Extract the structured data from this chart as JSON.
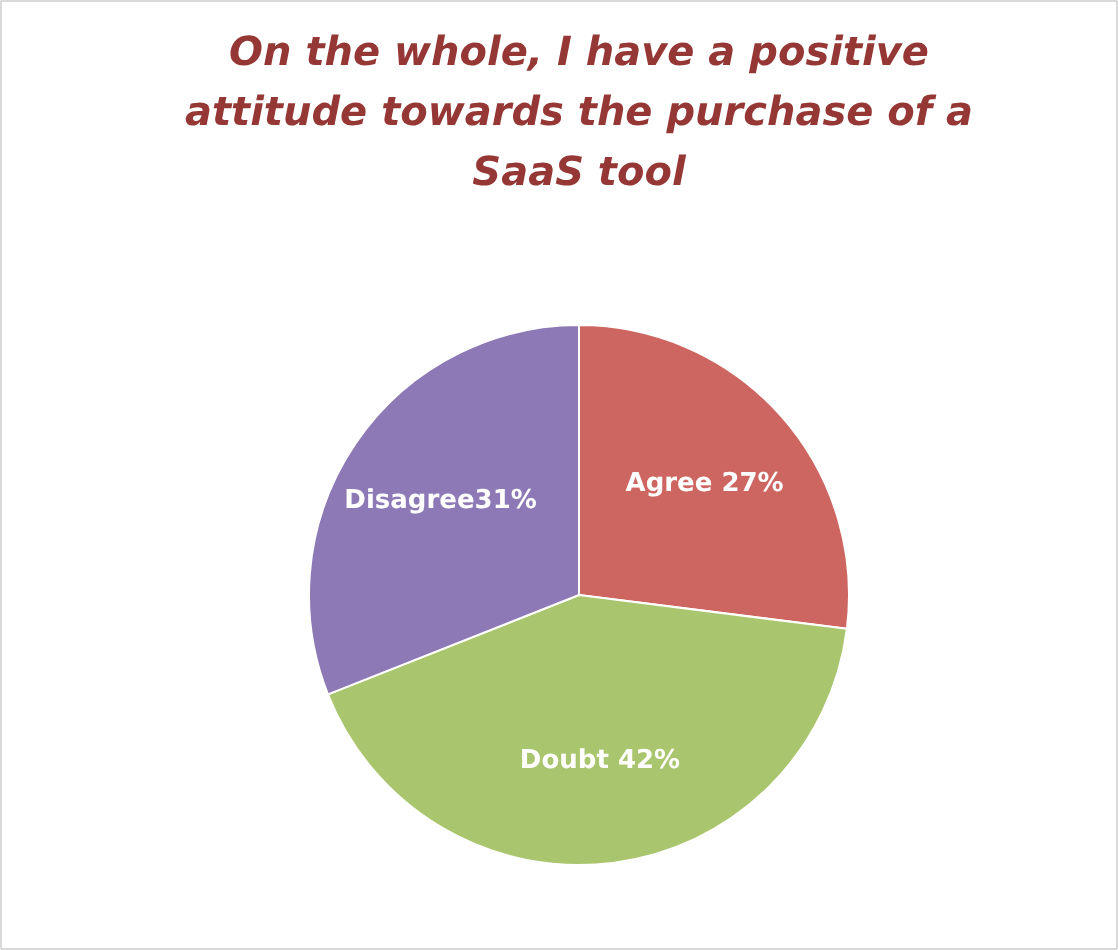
{
  "chart_data": {
    "type": "pie",
    "title": "On the whole, I have a positive attitude towards the purchase of a SaaS tool",
    "categories": [
      "Agree 27%",
      "Doubt 42%",
      "Disagree31%"
    ],
    "values": [
      27,
      42,
      31
    ],
    "colors": [
      "#cd6660",
      "#a9c56d",
      "#8d79b5"
    ]
  }
}
